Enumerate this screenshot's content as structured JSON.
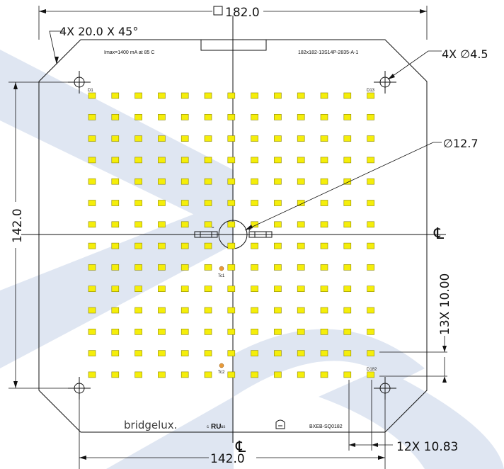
{
  "dimensions": {
    "top_width": "182.0",
    "chamfer": "4X 20.0 X 45°",
    "hole_dia": "4X ∅4.5",
    "center_hole_dia": "∅12.7",
    "left_height": "142.0",
    "bottom_width": "142.0",
    "pitch_y": "13X 10.00",
    "pitch_x": "12X 10.83",
    "centerline_symbol": "℄"
  },
  "board": {
    "imax_label": "Imax=1400 mA at 85 C",
    "part_label": "182x182-13S14P-2835-A-1",
    "d1": "D1",
    "d13": "D13",
    "d182": "D182",
    "tc1": "Tc1",
    "tc2": "Tc2",
    "brand": "bridgelux.",
    "ul_c": "c",
    "ul_mark": "RU",
    "ul_us": "us",
    "model": "BXEB-SQ0182",
    "minus": "-",
    "plus": "+"
  },
  "led_grid": {
    "rows": 14,
    "cols": 13
  },
  "colors": {
    "led_fill": "#f5ee0a",
    "led_stroke": "#8a8600",
    "line": "#111111",
    "watermark": "#dfe6f2",
    "tc_pad": "#e89a3a"
  }
}
